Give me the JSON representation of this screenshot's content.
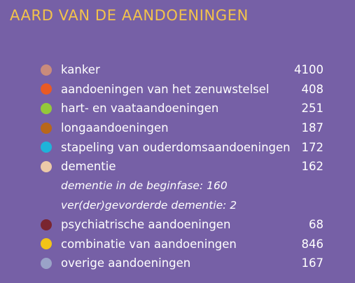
{
  "title": "AARD VAN DE AANDOENINGEN",
  "items": [
    {
      "label": "kanker",
      "count": "4100",
      "color": "#c98b7c"
    },
    {
      "label": "aandoeningen van het zenuwstelsel",
      "count": "408",
      "color": "#e85a24"
    },
    {
      "label": "hart- en vaataandoeningen",
      "count": "251",
      "color": "#94c93a"
    },
    {
      "label": "longaandoeningen",
      "count": "187",
      "color": "#b8671b"
    },
    {
      "label": "stapeling van ouderdomsaandoeningen",
      "count": "172",
      "color": "#1fb3d9"
    },
    {
      "label": "dementie",
      "count": "162",
      "color": "#ecc9a8"
    },
    {
      "label": "psychiatrische aandoeningen",
      "count": "68",
      "color": "#7a2530"
    },
    {
      "label": "combinatie van aandoeningen",
      "count": "846",
      "color": "#f2c417"
    },
    {
      "label": "overige aandoeningen",
      "count": "167",
      "color": "#9aa3c8"
    }
  ],
  "dementia_sub": [
    "dementie in de beginfase: 160",
    "ver(der)gevorderde dementie: 2"
  ]
}
